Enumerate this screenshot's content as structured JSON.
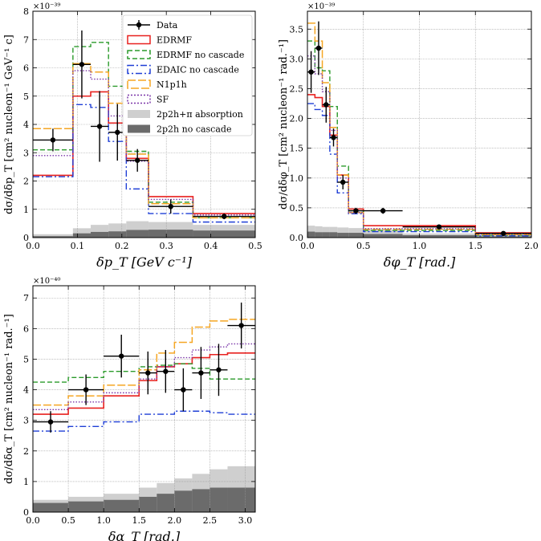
{
  "chart_data": [
    {
      "type": "histogram",
      "scale_label": "×10⁻³⁹",
      "xlabel": "δp_T [GeV c⁻¹]",
      "ylabel": "dσ/dδp_T [cm² nucleon⁻¹ GeV⁻¹ c]",
      "xlim": [
        0,
        0.5
      ],
      "ylim": [
        0,
        8
      ],
      "xticks": [
        "0.0",
        "0.1",
        "0.2",
        "0.3",
        "0.4",
        "0.5"
      ],
      "xtick_values": [
        0,
        0.1,
        0.2,
        0.3,
        0.4,
        0.5
      ],
      "yticks": [
        "0",
        "1",
        "2",
        "3",
        "4",
        "5",
        "6",
        "7",
        "8"
      ],
      "ytick_values": [
        0,
        1,
        2,
        3,
        4,
        5,
        6,
        7,
        8
      ],
      "grid": true,
      "legend_position": "top-right",
      "bin_edges": [
        0,
        0.09,
        0.13,
        0.17,
        0.21,
        0.26,
        0.36,
        0.5
      ],
      "data": {
        "x": [
          0.045,
          0.11,
          0.15,
          0.19,
          0.235,
          0.31,
          0.43
        ],
        "y": [
          3.45,
          6.12,
          3.93,
          3.72,
          2.73,
          1.1,
          0.75
        ],
        "yerr": [
          0.4,
          1.2,
          1.25,
          1.0,
          0.4,
          0.25,
          0.1
        ],
        "xerr": [
          0.045,
          0.02,
          0.02,
          0.02,
          0.025,
          0.05,
          0.07
        ]
      },
      "series": [
        {
          "name": "EDRMF",
          "values": [
            2.2,
            5.0,
            5.15,
            4.05,
            2.8,
            1.45,
            0.85
          ]
        },
        {
          "name": "EDRMF no cascade",
          "values": [
            3.1,
            6.75,
            6.9,
            5.35,
            3.05,
            1.25,
            0.7
          ]
        },
        {
          "name": "EDAIC no cascade",
          "values": [
            2.15,
            4.7,
            4.6,
            3.4,
            1.72,
            0.85,
            0.55
          ]
        },
        {
          "name": "N1p1h",
          "values": [
            3.85,
            6.15,
            5.85,
            4.75,
            2.95,
            1.2,
            0.7
          ]
        },
        {
          "name": "SF",
          "values": [
            2.9,
            5.9,
            5.6,
            4.3,
            2.7,
            1.35,
            0.8
          ]
        }
      ],
      "bands": [
        {
          "name": "2p2h+π absorption",
          "values": [
            0.12,
            0.33,
            0.45,
            0.5,
            0.58,
            0.55,
            0.45
          ]
        },
        {
          "name": "2p2h no cascade",
          "values": [
            0.05,
            0.15,
            0.2,
            0.22,
            0.27,
            0.28,
            0.25
          ]
        }
      ]
    },
    {
      "type": "histogram",
      "scale_label": "×10⁻³⁹",
      "xlabel": "δφ_T [rad.]",
      "ylabel": "dσ/dδφ_T [cm² nucleon⁻¹ rad.⁻¹]",
      "xlim": [
        0,
        2.0
      ],
      "ylim": [
        0,
        3.8
      ],
      "xticks": [
        "0.0",
        "0.5",
        "1.0",
        "1.5",
        "2.0"
      ],
      "xtick_values": [
        0,
        0.5,
        1.0,
        1.5,
        2.0
      ],
      "yticks": [
        "0.0",
        "0.5",
        "1.0",
        "1.5",
        "2.0",
        "2.5",
        "3.0",
        "3.5"
      ],
      "ytick_values": [
        0,
        0.5,
        1.0,
        1.5,
        2.0,
        2.5,
        3.0,
        3.5
      ],
      "grid": true,
      "bin_edges": [
        0,
        0.067,
        0.133,
        0.2,
        0.267,
        0.367,
        0.5,
        0.85,
        1.5,
        2.0
      ],
      "data": {
        "x": [
          0.033,
          0.1,
          0.167,
          0.233,
          0.317,
          0.433,
          0.675,
          1.175,
          1.75
        ],
        "y": [
          2.78,
          3.18,
          2.23,
          1.68,
          0.93,
          0.45,
          0.45,
          0.18,
          0.07
        ],
        "yerr": [
          0.35,
          0.45,
          0.3,
          0.15,
          0.12,
          0.05,
          0.05,
          0.03,
          0.02
        ],
        "xerr": [
          0.033,
          0.033,
          0.033,
          0.033,
          0.05,
          0.067,
          0.175,
          0.325,
          0.25
        ]
      },
      "series": [
        {
          "name": "EDRMF",
          "values": [
            2.4,
            2.35,
            2.2,
            1.72,
            1.05,
            0.48,
            0.2,
            0.2,
            0.08
          ]
        },
        {
          "name": "EDRMF no cascade",
          "values": [
            3.3,
            2.85,
            2.8,
            2.2,
            1.2,
            0.45,
            0.12,
            0.12,
            0.04
          ]
        },
        {
          "name": "EDAIC no cascade",
          "values": [
            2.25,
            2.15,
            2.05,
            1.4,
            0.75,
            0.4,
            0.1,
            0.1,
            0.03
          ]
        },
        {
          "name": "N1p1h",
          "values": [
            3.6,
            3.3,
            2.6,
            1.85,
            1.05,
            0.42,
            0.14,
            0.14,
            0.05
          ]
        },
        {
          "name": "SF",
          "values": [
            3.05,
            2.75,
            2.45,
            1.8,
            1.0,
            0.42,
            0.15,
            0.15,
            0.06
          ]
        }
      ],
      "bands": [
        {
          "name": "2p2h+π absorption",
          "values": [
            0.2,
            0.19,
            0.18,
            0.18,
            0.17,
            0.16,
            0.13,
            0.07,
            0.04
          ]
        },
        {
          "name": "2p2h no cascade",
          "values": [
            0.1,
            0.09,
            0.09,
            0.09,
            0.08,
            0.08,
            0.06,
            0.04,
            0.02
          ]
        }
      ]
    },
    {
      "type": "histogram",
      "scale_label": "×10⁻⁴⁰",
      "xlabel": "δα_T [rad.]",
      "ylabel": "dσ/dδα_T [cm² nucleon⁻¹ rad.⁻¹]",
      "xlim": [
        0,
        3.1416
      ],
      "ylim": [
        0,
        7.4
      ],
      "xticks": [
        "0.0",
        "0.5",
        "1.0",
        "1.5",
        "2.0",
        "2.5",
        "3.0"
      ],
      "xtick_values": [
        0,
        0.5,
        1.0,
        1.5,
        2.0,
        2.5,
        3.0
      ],
      "yticks": [
        "0",
        "1",
        "2",
        "3",
        "4",
        "5",
        "6",
        "7"
      ],
      "ytick_values": [
        0,
        1,
        2,
        3,
        4,
        5,
        6,
        7
      ],
      "grid": true,
      "bin_edges": [
        0,
        0.5,
        1.0,
        1.5,
        1.75,
        2.0,
        2.25,
        2.5,
        2.75,
        3.1416
      ],
      "data": {
        "x": [
          0.25,
          0.75,
          1.25,
          1.625,
          1.875,
          2.125,
          2.375,
          2.625,
          2.945
        ],
        "y": [
          2.95,
          4.0,
          5.1,
          4.55,
          4.6,
          4.0,
          4.55,
          4.65,
          6.1
        ],
        "yerr": [
          0.35,
          0.5,
          0.7,
          0.7,
          0.7,
          0.7,
          0.85,
          0.85,
          0.75
        ],
        "xerr": [
          0.25,
          0.25,
          0.25,
          0.125,
          0.125,
          0.125,
          0.125,
          0.125,
          0.196
        ]
      },
      "series": [
        {
          "name": "EDRMF",
          "values": [
            3.2,
            3.4,
            3.8,
            4.3,
            4.75,
            4.85,
            5.05,
            5.15,
            5.2
          ]
        },
        {
          "name": "EDRMF no cascade",
          "values": [
            4.25,
            4.4,
            4.6,
            4.75,
            4.8,
            4.85,
            4.7,
            4.35,
            4.35
          ]
        },
        {
          "name": "EDAIC no cascade",
          "values": [
            2.65,
            2.8,
            2.95,
            3.2,
            3.2,
            3.3,
            3.3,
            3.25,
            3.2
          ]
        },
        {
          "name": "N1p1h",
          "values": [
            3.5,
            3.8,
            4.15,
            4.65,
            5.2,
            5.55,
            6.05,
            6.25,
            6.3
          ]
        },
        {
          "name": "SF",
          "values": [
            3.35,
            3.6,
            3.9,
            4.35,
            4.75,
            5.05,
            5.3,
            5.4,
            5.5
          ]
        }
      ],
      "bands": [
        {
          "name": "2p2h+π absorption",
          "values": [
            0.4,
            0.5,
            0.6,
            0.8,
            0.95,
            1.1,
            1.25,
            1.4,
            1.5
          ]
        },
        {
          "name": "2p2h no cascade",
          "values": [
            0.3,
            0.35,
            0.4,
            0.5,
            0.6,
            0.7,
            0.75,
            0.8,
            0.8
          ]
        }
      ]
    }
  ],
  "legend": {
    "items": [
      {
        "label": "Data",
        "kind": "data"
      },
      {
        "label": "EDRMF",
        "kind": "line",
        "color": "#e8211f",
        "dash": ""
      },
      {
        "label": "EDRMF no cascade",
        "kind": "line",
        "color": "#2a9a2a",
        "dash": "6,3"
      },
      {
        "label": "EDAIC no cascade",
        "kind": "line",
        "color": "#1f3fd6",
        "dash": "8,3,2,3"
      },
      {
        "label": "N1p1h",
        "kind": "line",
        "color": "#f5a623",
        "dash": "10,3"
      },
      {
        "label": "SF",
        "kind": "line",
        "color": "#7a35a8",
        "dash": "2,2"
      },
      {
        "label": "2p2h+π absorption",
        "kind": "band",
        "color": "#cfcfcf"
      },
      {
        "label": "2p2h no cascade",
        "kind": "band",
        "color": "#6b6b6b"
      }
    ]
  },
  "colors": {
    "EDRMF": "#e8211f",
    "EDRMF no cascade": "#2a9a2a",
    "EDAIC no cascade": "#1f3fd6",
    "N1p1h": "#f5a623",
    "SF": "#7a35a8",
    "band_light": "#cfcfcf",
    "band_dark": "#6b6b6b",
    "data": "#000000",
    "grid": "#9a9a9a"
  }
}
